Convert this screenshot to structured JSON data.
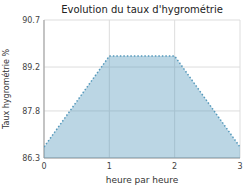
{
  "chart_data": {
    "type": "area",
    "title": "Evolution du taux d'hygrométrie",
    "xlabel": "heure par heure",
    "ylabel": "Taux hygrométrie %",
    "x": [
      0,
      1,
      2,
      3
    ],
    "values": [
      86.65,
      89.55,
      89.55,
      86.65
    ],
    "color": "#5599bb",
    "line_style": "dotted",
    "xlim": [
      0,
      3
    ],
    "ylim": [
      86.3,
      90.7
    ],
    "xticks": [
      0,
      1,
      2,
      3
    ],
    "yticks": [
      86.3,
      87.8,
      89.2,
      90.7
    ],
    "grid": true
  }
}
